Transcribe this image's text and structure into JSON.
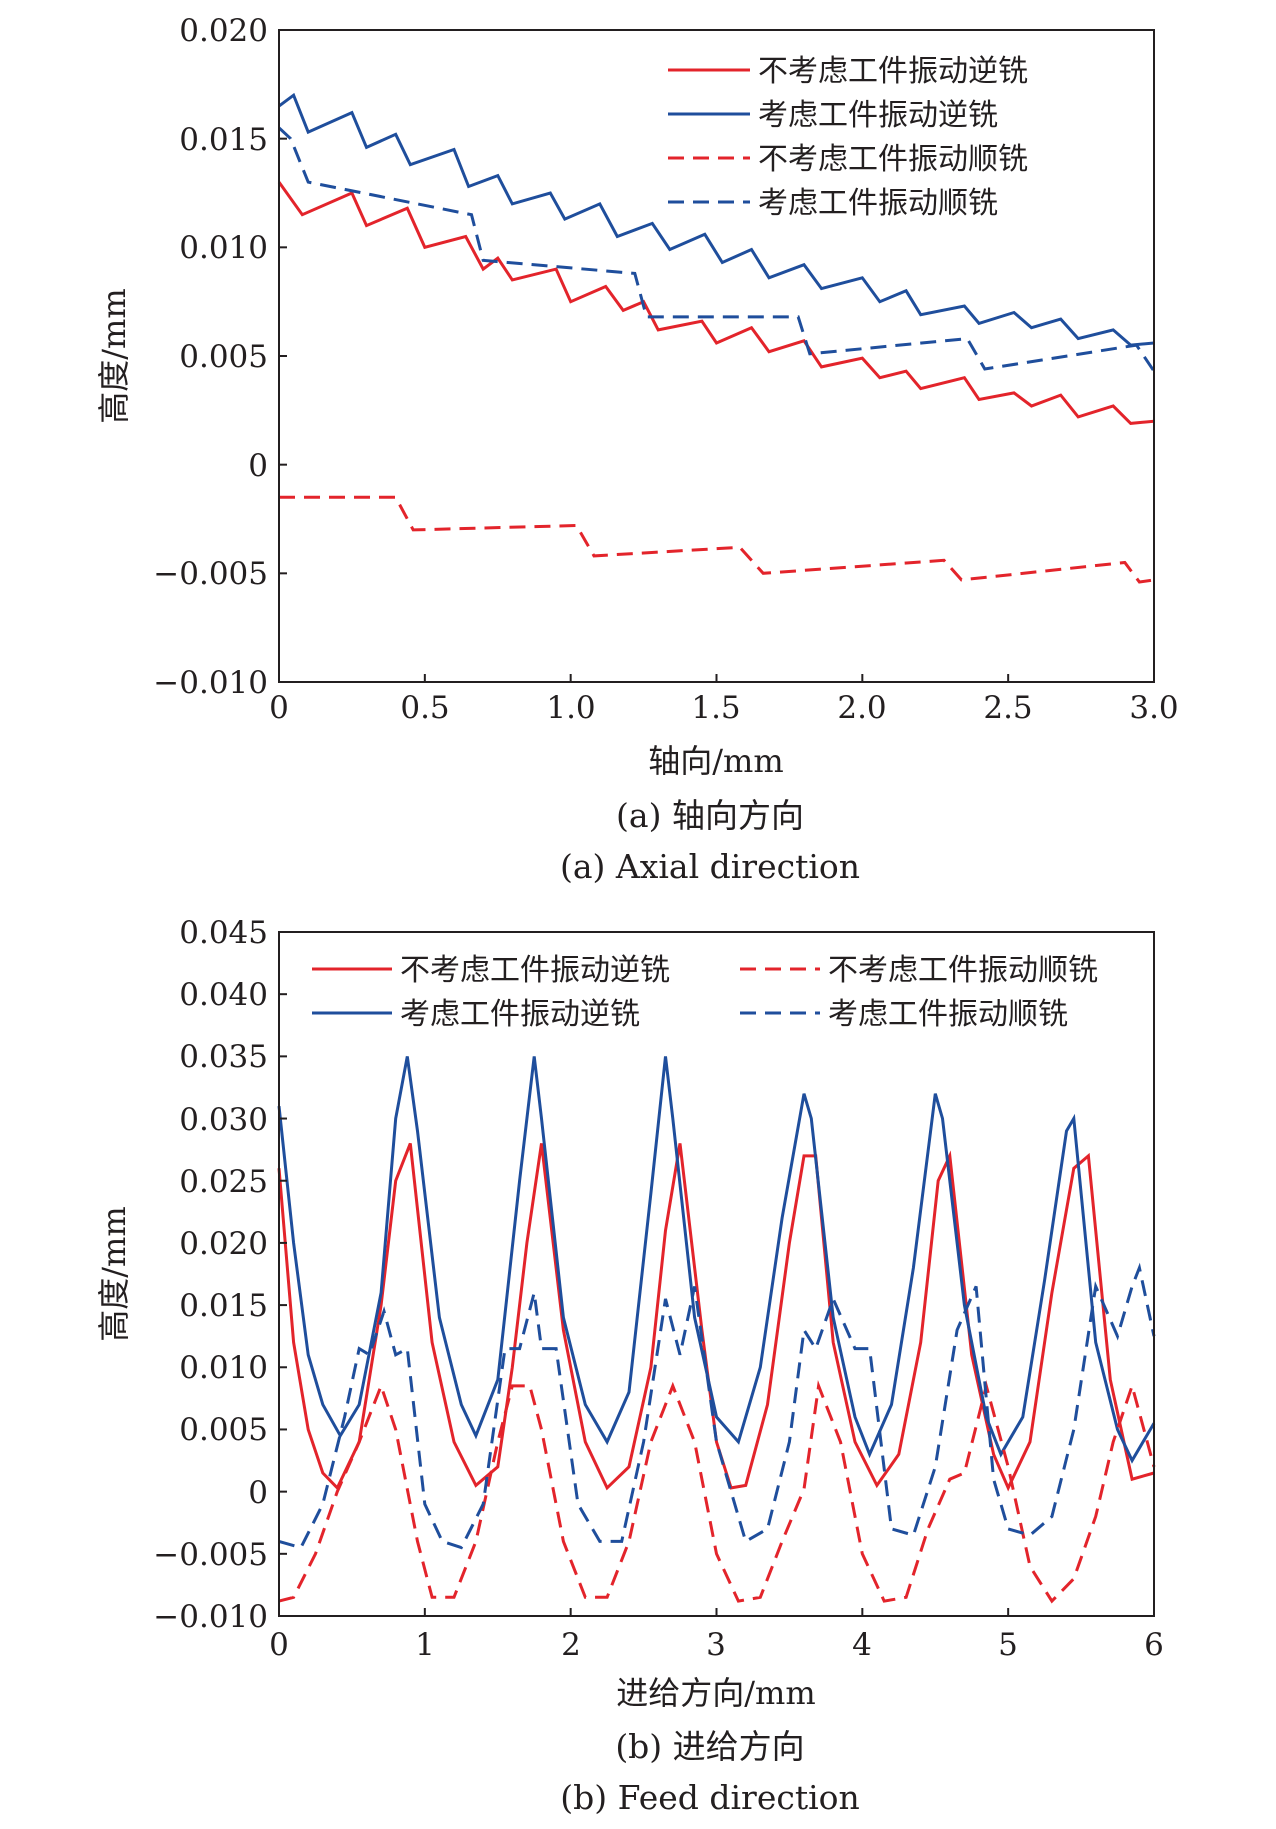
{
  "colors": {
    "red": "#e3242b",
    "blue": "#1f4e9c",
    "axis": "#231f20"
  },
  "charts": [
    {
      "caption_cn": "(a) 轴向方向",
      "caption_en": "(a) Axial direction",
      "ylabel": "高度/mm",
      "xlabel": "轴向/mm",
      "y_tick_labels": [
        "0.020",
        "0.015",
        "0.010",
        "0.005",
        "0",
        "−0.005",
        "−0.010"
      ],
      "x_tick_labels": [
        "0",
        "0.5",
        "1.0",
        "1.5",
        "2.0",
        "2.5",
        "3.0"
      ],
      "legend": [
        "不考虑工件振动逆铣",
        "考虑工件振动逆铣",
        "不考虑工件振动顺铣",
        "考虑工件振动顺铣"
      ]
    },
    {
      "caption_cn": "(b) 进给方向",
      "caption_en": "(b) Feed direction",
      "ylabel": "高度/mm",
      "xlabel": "进给方向/mm",
      "y_tick_labels": [
        "0.045",
        "0.040",
        "0.035",
        "0.030",
        "0.025",
        "0.020",
        "0.015",
        "0.010",
        "0.005",
        "0",
        "−0.005",
        "−0.010"
      ],
      "x_tick_labels": [
        "0",
        "1",
        "2",
        "3",
        "4",
        "5",
        "6"
      ],
      "legend": [
        "不考虑工件振动逆铣",
        "不考虑工件振动顺铣",
        "考虑工件振动逆铣",
        "考虑工件振动顺铣"
      ]
    }
  ],
  "chart_data": [
    {
      "type": "line",
      "title": "(a) 轴向方向 / (a) Axial direction",
      "xlabel": "轴向/mm",
      "ylabel": "高度/mm",
      "xlim": [
        0,
        3.0
      ],
      "ylim": [
        -0.01,
        0.02
      ],
      "grid": false,
      "legend_position": "top-right",
      "series": [
        {
          "name": "不考虑工件振动逆铣",
          "color": "red",
          "dash": false,
          "x": [
            0,
            0.08,
            0.25,
            0.3,
            0.44,
            0.5,
            0.64,
            0.7,
            0.75,
            0.8,
            0.95,
            1.0,
            1.12,
            1.18,
            1.25,
            1.3,
            1.45,
            1.5,
            1.62,
            1.68,
            1.8,
            1.86,
            2.0,
            2.06,
            2.15,
            2.2,
            2.35,
            2.4,
            2.52,
            2.58,
            2.68,
            2.74,
            2.86,
            2.92,
            3.0
          ],
          "y": [
            0.013,
            0.0115,
            0.0125,
            0.011,
            0.0118,
            0.01,
            0.0105,
            0.009,
            0.0095,
            0.0085,
            0.009,
            0.0075,
            0.0082,
            0.0071,
            0.0075,
            0.0062,
            0.0066,
            0.0056,
            0.0063,
            0.0052,
            0.0057,
            0.0045,
            0.0049,
            0.004,
            0.0043,
            0.0035,
            0.004,
            0.003,
            0.0033,
            0.0027,
            0.0032,
            0.0022,
            0.0027,
            0.0019,
            0.002
          ]
        },
        {
          "name": "考虑工件振动逆铣",
          "color": "blue",
          "dash": false,
          "x": [
            0,
            0.05,
            0.1,
            0.25,
            0.3,
            0.4,
            0.45,
            0.6,
            0.65,
            0.75,
            0.8,
            0.93,
            0.98,
            1.1,
            1.16,
            1.28,
            1.34,
            1.46,
            1.52,
            1.62,
            1.68,
            1.8,
            1.86,
            2.0,
            2.06,
            2.15,
            2.2,
            2.35,
            2.4,
            2.52,
            2.58,
            2.68,
            2.74,
            2.86,
            2.92,
            3.0
          ],
          "y": [
            0.0165,
            0.017,
            0.0153,
            0.0162,
            0.0146,
            0.0152,
            0.0138,
            0.0145,
            0.0128,
            0.0133,
            0.012,
            0.0125,
            0.0113,
            0.012,
            0.0105,
            0.0111,
            0.0099,
            0.0106,
            0.0093,
            0.0099,
            0.0086,
            0.0092,
            0.0081,
            0.0086,
            0.0075,
            0.008,
            0.0069,
            0.0073,
            0.0065,
            0.007,
            0.0063,
            0.0067,
            0.0058,
            0.0062,
            0.0055,
            0.0056
          ]
        },
        {
          "name": "不考虑工件振动顺铣",
          "color": "red",
          "dash": true,
          "x": [
            0,
            0.4,
            0.46,
            1.02,
            1.08,
            1.58,
            1.66,
            2.28,
            2.34,
            2.9,
            2.95,
            3.0
          ],
          "y": [
            -0.0015,
            -0.0015,
            -0.003,
            -0.0028,
            -0.0042,
            -0.0038,
            -0.005,
            -0.0044,
            -0.0053,
            -0.0045,
            -0.0054,
            -0.0053
          ]
        },
        {
          "name": "考虑工件振动顺铣",
          "color": "blue",
          "dash": true,
          "x": [
            0,
            0.04,
            0.1,
            0.66,
            0.7,
            1.22,
            1.26,
            1.78,
            1.82,
            2.36,
            2.42,
            2.94,
            3.0
          ],
          "y": [
            0.0155,
            0.015,
            0.013,
            0.0115,
            0.0094,
            0.0088,
            0.0068,
            0.0068,
            0.0051,
            0.0058,
            0.0044,
            0.0055,
            0.0043
          ]
        }
      ]
    },
    {
      "type": "line",
      "title": "(b) 进给方向 / (b) Feed direction",
      "xlabel": "进给方向/mm",
      "ylabel": "高度/mm",
      "xlim": [
        0,
        6
      ],
      "ylim": [
        -0.01,
        0.045
      ],
      "grid": false,
      "legend_position": "top",
      "series": [
        {
          "name": "不考虑工件振动逆铣",
          "color": "red",
          "dash": false,
          "x": [
            0,
            0.1,
            0.2,
            0.3,
            0.4,
            0.55,
            0.7,
            0.8,
            0.9,
            1.05,
            1.2,
            1.35,
            1.5,
            1.6,
            1.7,
            1.8,
            1.95,
            2.1,
            2.25,
            2.4,
            2.55,
            2.65,
            2.75,
            2.9,
            3.0,
            3.1,
            3.2,
            3.35,
            3.5,
            3.6,
            3.68,
            3.8,
            3.95,
            4.1,
            4.25,
            4.4,
            4.52,
            4.6,
            4.75,
            4.9,
            5.0,
            5.15,
            5.3,
            5.45,
            5.55,
            5.7,
            5.85,
            6.0
          ],
          "y": [
            0.026,
            0.012,
            0.005,
            0.0015,
            0.0003,
            0.004,
            0.015,
            0.025,
            0.028,
            0.012,
            0.004,
            0.0005,
            0.002,
            0.01,
            0.02,
            0.028,
            0.013,
            0.004,
            0.0003,
            0.002,
            0.01,
            0.021,
            0.028,
            0.013,
            0.004,
            0.0003,
            0.0005,
            0.007,
            0.02,
            0.027,
            0.027,
            0.012,
            0.004,
            0.0005,
            0.003,
            0.012,
            0.025,
            0.027,
            0.011,
            0.003,
            0.0003,
            0.004,
            0.016,
            0.026,
            0.027,
            0.009,
            0.001,
            0.0015
          ]
        },
        {
          "name": "考虑工件振动逆铣",
          "color": "blue",
          "dash": false,
          "x": [
            0,
            0.1,
            0.2,
            0.3,
            0.42,
            0.55,
            0.7,
            0.8,
            0.88,
            0.95,
            1.1,
            1.25,
            1.35,
            1.5,
            1.65,
            1.75,
            1.8,
            1.95,
            2.1,
            2.25,
            2.4,
            2.55,
            2.65,
            2.7,
            2.85,
            3.0,
            3.15,
            3.3,
            3.45,
            3.6,
            3.65,
            3.8,
            3.95,
            4.05,
            4.2,
            4.35,
            4.5,
            4.55,
            4.7,
            4.85,
            4.95,
            5.1,
            5.25,
            5.4,
            5.45,
            5.6,
            5.75,
            5.85,
            6.0
          ],
          "y": [
            0.031,
            0.02,
            0.011,
            0.007,
            0.0045,
            0.007,
            0.016,
            0.03,
            0.035,
            0.029,
            0.014,
            0.007,
            0.0045,
            0.009,
            0.025,
            0.035,
            0.03,
            0.014,
            0.007,
            0.004,
            0.008,
            0.024,
            0.035,
            0.03,
            0.014,
            0.006,
            0.004,
            0.01,
            0.022,
            0.032,
            0.03,
            0.014,
            0.006,
            0.003,
            0.007,
            0.018,
            0.032,
            0.03,
            0.015,
            0.006,
            0.003,
            0.006,
            0.017,
            0.029,
            0.03,
            0.012,
            0.005,
            0.0025,
            0.0055
          ]
        },
        {
          "name": "不考虑工件振动顺铣",
          "color": "red",
          "dash": true,
          "x": [
            0,
            0.1,
            0.25,
            0.4,
            0.55,
            0.7,
            0.8,
            0.95,
            1.05,
            1.2,
            1.35,
            1.5,
            1.6,
            1.72,
            1.8,
            1.95,
            2.1,
            2.25,
            2.4,
            2.55,
            2.7,
            2.85,
            3.0,
            3.15,
            3.3,
            3.45,
            3.6,
            3.7,
            3.85,
            4.0,
            4.15,
            4.3,
            4.45,
            4.6,
            4.7,
            4.85,
            5.0,
            5.15,
            5.3,
            5.45,
            5.6,
            5.72,
            5.85,
            6.0
          ],
          "y": [
            -0.0088,
            -0.0085,
            -0.005,
            0.0,
            0.004,
            0.0085,
            0.005,
            -0.004,
            -0.0085,
            -0.0085,
            -0.004,
            0.004,
            0.0085,
            0.0085,
            0.005,
            -0.004,
            -0.0085,
            -0.0085,
            -0.004,
            0.004,
            0.0085,
            0.004,
            -0.005,
            -0.0088,
            -0.0085,
            -0.004,
            0.0002,
            0.0085,
            0.004,
            -0.005,
            -0.0088,
            -0.0085,
            -0.003,
            0.001,
            0.0015,
            0.0085,
            0.002,
            -0.006,
            -0.0088,
            -0.007,
            -0.002,
            0.004,
            0.0085,
            0.002
          ]
        },
        {
          "name": "考虑工件振动顺铣",
          "color": "blue",
          "dash": true,
          "x": [
            0,
            0.15,
            0.3,
            0.45,
            0.55,
            0.62,
            0.72,
            0.8,
            0.88,
            1.0,
            1.12,
            1.25,
            1.4,
            1.55,
            1.65,
            1.75,
            1.8,
            1.9,
            2.05,
            2.2,
            2.35,
            2.5,
            2.65,
            2.75,
            2.85,
            3.0,
            3.2,
            3.35,
            3.5,
            3.6,
            3.68,
            3.8,
            3.95,
            4.05,
            4.2,
            4.35,
            4.5,
            4.65,
            4.78,
            4.9,
            5.0,
            5.15,
            5.3,
            5.45,
            5.6,
            5.75,
            5.85,
            5.9,
            6.0
          ],
          "y": [
            -0.004,
            -0.0045,
            -0.001,
            0.006,
            0.0115,
            0.011,
            0.0145,
            0.011,
            0.0115,
            -0.001,
            -0.004,
            -0.0045,
            -0.001,
            0.0115,
            0.0115,
            0.016,
            0.0115,
            0.0115,
            -0.001,
            -0.004,
            -0.004,
            0.004,
            0.0155,
            0.011,
            0.0165,
            0.004,
            -0.004,
            -0.003,
            0.004,
            0.013,
            0.0115,
            0.0155,
            0.0115,
            0.0115,
            -0.003,
            -0.0035,
            0.002,
            0.013,
            0.0165,
            0.001,
            -0.003,
            -0.0035,
            -0.002,
            0.005,
            0.0165,
            0.0125,
            0.0165,
            0.018,
            0.0125
          ]
        }
      ]
    }
  ]
}
